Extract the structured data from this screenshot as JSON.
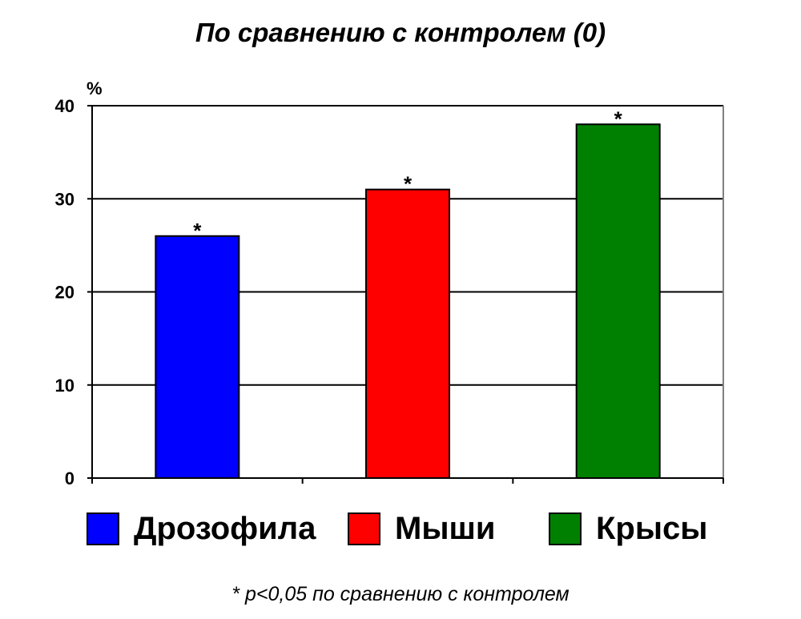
{
  "chart_data": {
    "type": "bar",
    "title": "По сравнению с контролем (0)",
    "ylabel": "%",
    "xlabel": "",
    "categories": [
      "Дрозофила",
      "Мыши",
      "Крысы"
    ],
    "values": [
      26,
      31,
      38
    ],
    "colors": [
      "#0000ff",
      "#ff0000",
      "#008000"
    ],
    "significance_marks": [
      "*",
      "*",
      "*"
    ],
    "ylim": [
      0,
      40
    ],
    "yticks": [
      0,
      10,
      20,
      30,
      40
    ],
    "grid": true,
    "legend_position": "bottom",
    "footnote": "* p<0,05 по сравнению с контролем"
  }
}
